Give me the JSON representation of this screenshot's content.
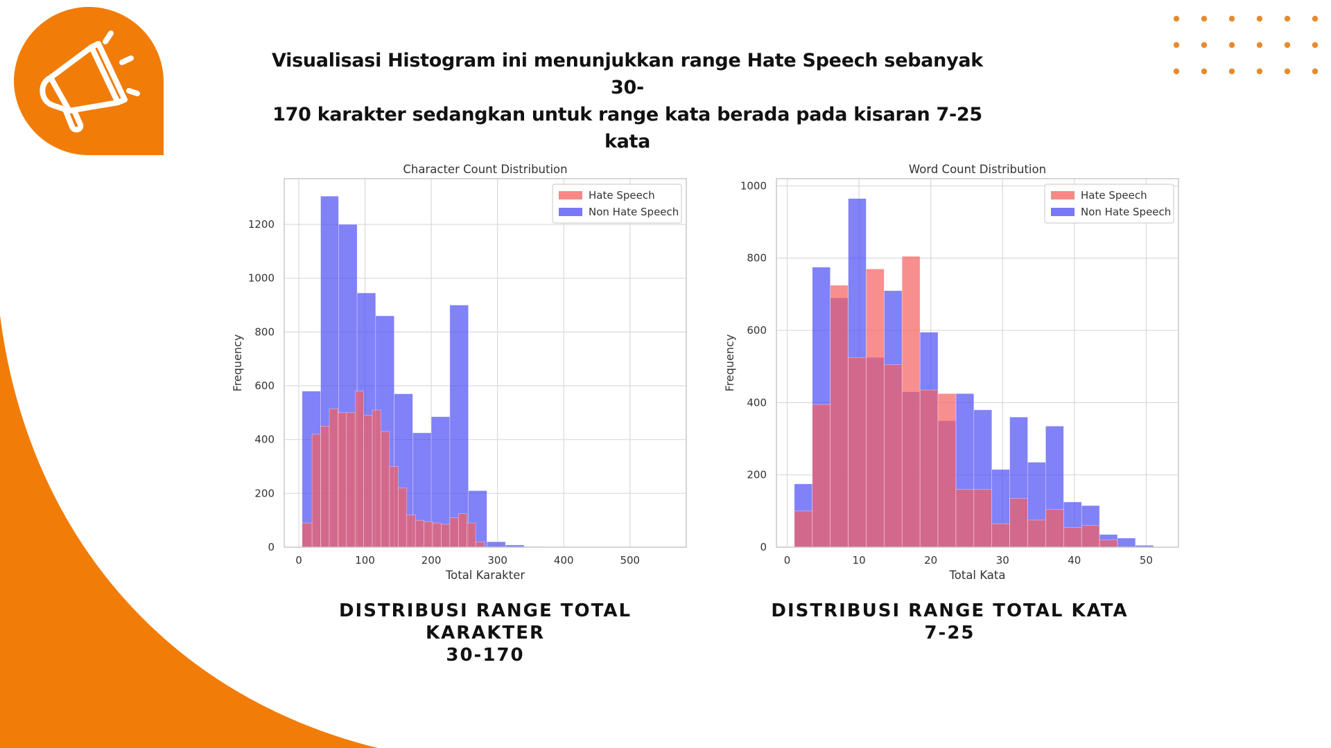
{
  "slide": {
    "title_line1": "Visualisasi Histogram ini menunjukkan range Hate Speech sebanyak  30-",
    "title_line2": "170 karakter sedangkan untuk range kata berada pada kisaran 7-25 kata",
    "caption_left_line1": "DISTRIBUSI RANGE TOTAL KARAKTER",
    "caption_left_line2": "30-170",
    "caption_right_line1": "DISTRIBUSI RANGE TOTAL KATA",
    "caption_right_line2": "7-25",
    "icon": "megaphone-icon",
    "colors": {
      "accent": "#f27c08",
      "dots": "#e98a2c"
    }
  },
  "chart_data": [
    {
      "type": "bar",
      "title": "Character Count Distribution",
      "xlabel": "Total Karakter",
      "ylabel": "Frequency",
      "xlim": [
        -22,
        585
      ],
      "ylim": [
        0,
        1370
      ],
      "xticks": [
        0,
        100,
        200,
        300,
        400,
        500
      ],
      "yticks": [
        0,
        200,
        400,
        600,
        800,
        1000,
        1200
      ],
      "legend_position": "top-right",
      "grid": true,
      "series": [
        {
          "name": "Non Hate Speech",
          "color": "#4b4bf5",
          "bins": [
            [
              5,
              33
            ],
            [
              33,
              60
            ],
            [
              60,
              88
            ],
            [
              88,
              116
            ],
            [
              116,
              144
            ],
            [
              144,
              172
            ],
            [
              172,
              200
            ],
            [
              200,
              228
            ],
            [
              228,
              256
            ],
            [
              256,
              284
            ],
            [
              284,
              312
            ],
            [
              312,
              340
            ],
            [
              340,
              368
            ]
          ],
          "values": [
            580,
            1305,
            1200,
            945,
            860,
            570,
            425,
            485,
            900,
            210,
            20,
            8,
            2
          ]
        },
        {
          "name": "Hate Speech",
          "color": "#f55f5f",
          "bins": [
            [
              5,
              20
            ],
            [
              20,
              33
            ],
            [
              33,
              46
            ],
            [
              46,
              59
            ],
            [
              59,
              72
            ],
            [
              72,
              85
            ],
            [
              85,
              98
            ],
            [
              98,
              111
            ],
            [
              111,
              124
            ],
            [
              124,
              137
            ],
            [
              137,
              150
            ],
            [
              150,
              163
            ],
            [
              163,
              176
            ],
            [
              176,
              189
            ],
            [
              189,
              202
            ],
            [
              202,
              215
            ],
            [
              215,
              228
            ],
            [
              228,
              241
            ],
            [
              241,
              254
            ],
            [
              254,
              267
            ],
            [
              267,
              280
            ]
          ],
          "values": [
            90,
            420,
            450,
            515,
            500,
            500,
            580,
            490,
            510,
            430,
            300,
            220,
            120,
            100,
            95,
            90,
            85,
            110,
            125,
            90,
            20
          ]
        }
      ]
    },
    {
      "type": "bar",
      "title": "Word Count Distribution",
      "xlabel": "Total Kata",
      "ylabel": "Frequency",
      "xlim": [
        -1.5,
        54.5
      ],
      "ylim": [
        0,
        1020
      ],
      "xticks": [
        0,
        10,
        20,
        30,
        40,
        50
      ],
      "yticks": [
        0,
        200,
        400,
        600,
        800,
        1000
      ],
      "legend_position": "top-right",
      "grid": true,
      "series": [
        {
          "name": "Non Hate Speech",
          "color": "#4b4bf5",
          "bins": [
            [
              1,
              3.5
            ],
            [
              3.5,
              6
            ],
            [
              6,
              8.5
            ],
            [
              8.5,
              11
            ],
            [
              11,
              13.5
            ],
            [
              13.5,
              16
            ],
            [
              16,
              18.5
            ],
            [
              18.5,
              21
            ],
            [
              21,
              23.5
            ],
            [
              23.5,
              26
            ],
            [
              26,
              28.5
            ],
            [
              28.5,
              31
            ],
            [
              31,
              33.5
            ],
            [
              33.5,
              36
            ],
            [
              36,
              38.5
            ],
            [
              38.5,
              41
            ],
            [
              41,
              43.5
            ],
            [
              43.5,
              46
            ],
            [
              46,
              48.5
            ],
            [
              48.5,
              51
            ],
            [
              51,
              53.5
            ]
          ],
          "values": [
            175,
            775,
            690,
            965,
            525,
            710,
            430,
            595,
            350,
            425,
            380,
            215,
            360,
            235,
            335,
            125,
            115,
            35,
            25,
            5,
            0
          ]
        },
        {
          "name": "Hate Speech",
          "color": "#f55f5f",
          "bins": [
            [
              1,
              3.5
            ],
            [
              3.5,
              6
            ],
            [
              6,
              8.5
            ],
            [
              8.5,
              11
            ],
            [
              11,
              13.5
            ],
            [
              13.5,
              16
            ],
            [
              16,
              18.5
            ],
            [
              18.5,
              21
            ],
            [
              21,
              23.5
            ],
            [
              23.5,
              26
            ],
            [
              26,
              28.5
            ],
            [
              28.5,
              31
            ],
            [
              31,
              33.5
            ],
            [
              33.5,
              36
            ],
            [
              36,
              38.5
            ],
            [
              38.5,
              41
            ],
            [
              41,
              43.5
            ],
            [
              43.5,
              46
            ]
          ],
          "values": [
            100,
            395,
            725,
            525,
            770,
            505,
            805,
            435,
            425,
            160,
            160,
            65,
            135,
            75,
            105,
            55,
            60,
            20
          ]
        }
      ]
    }
  ]
}
